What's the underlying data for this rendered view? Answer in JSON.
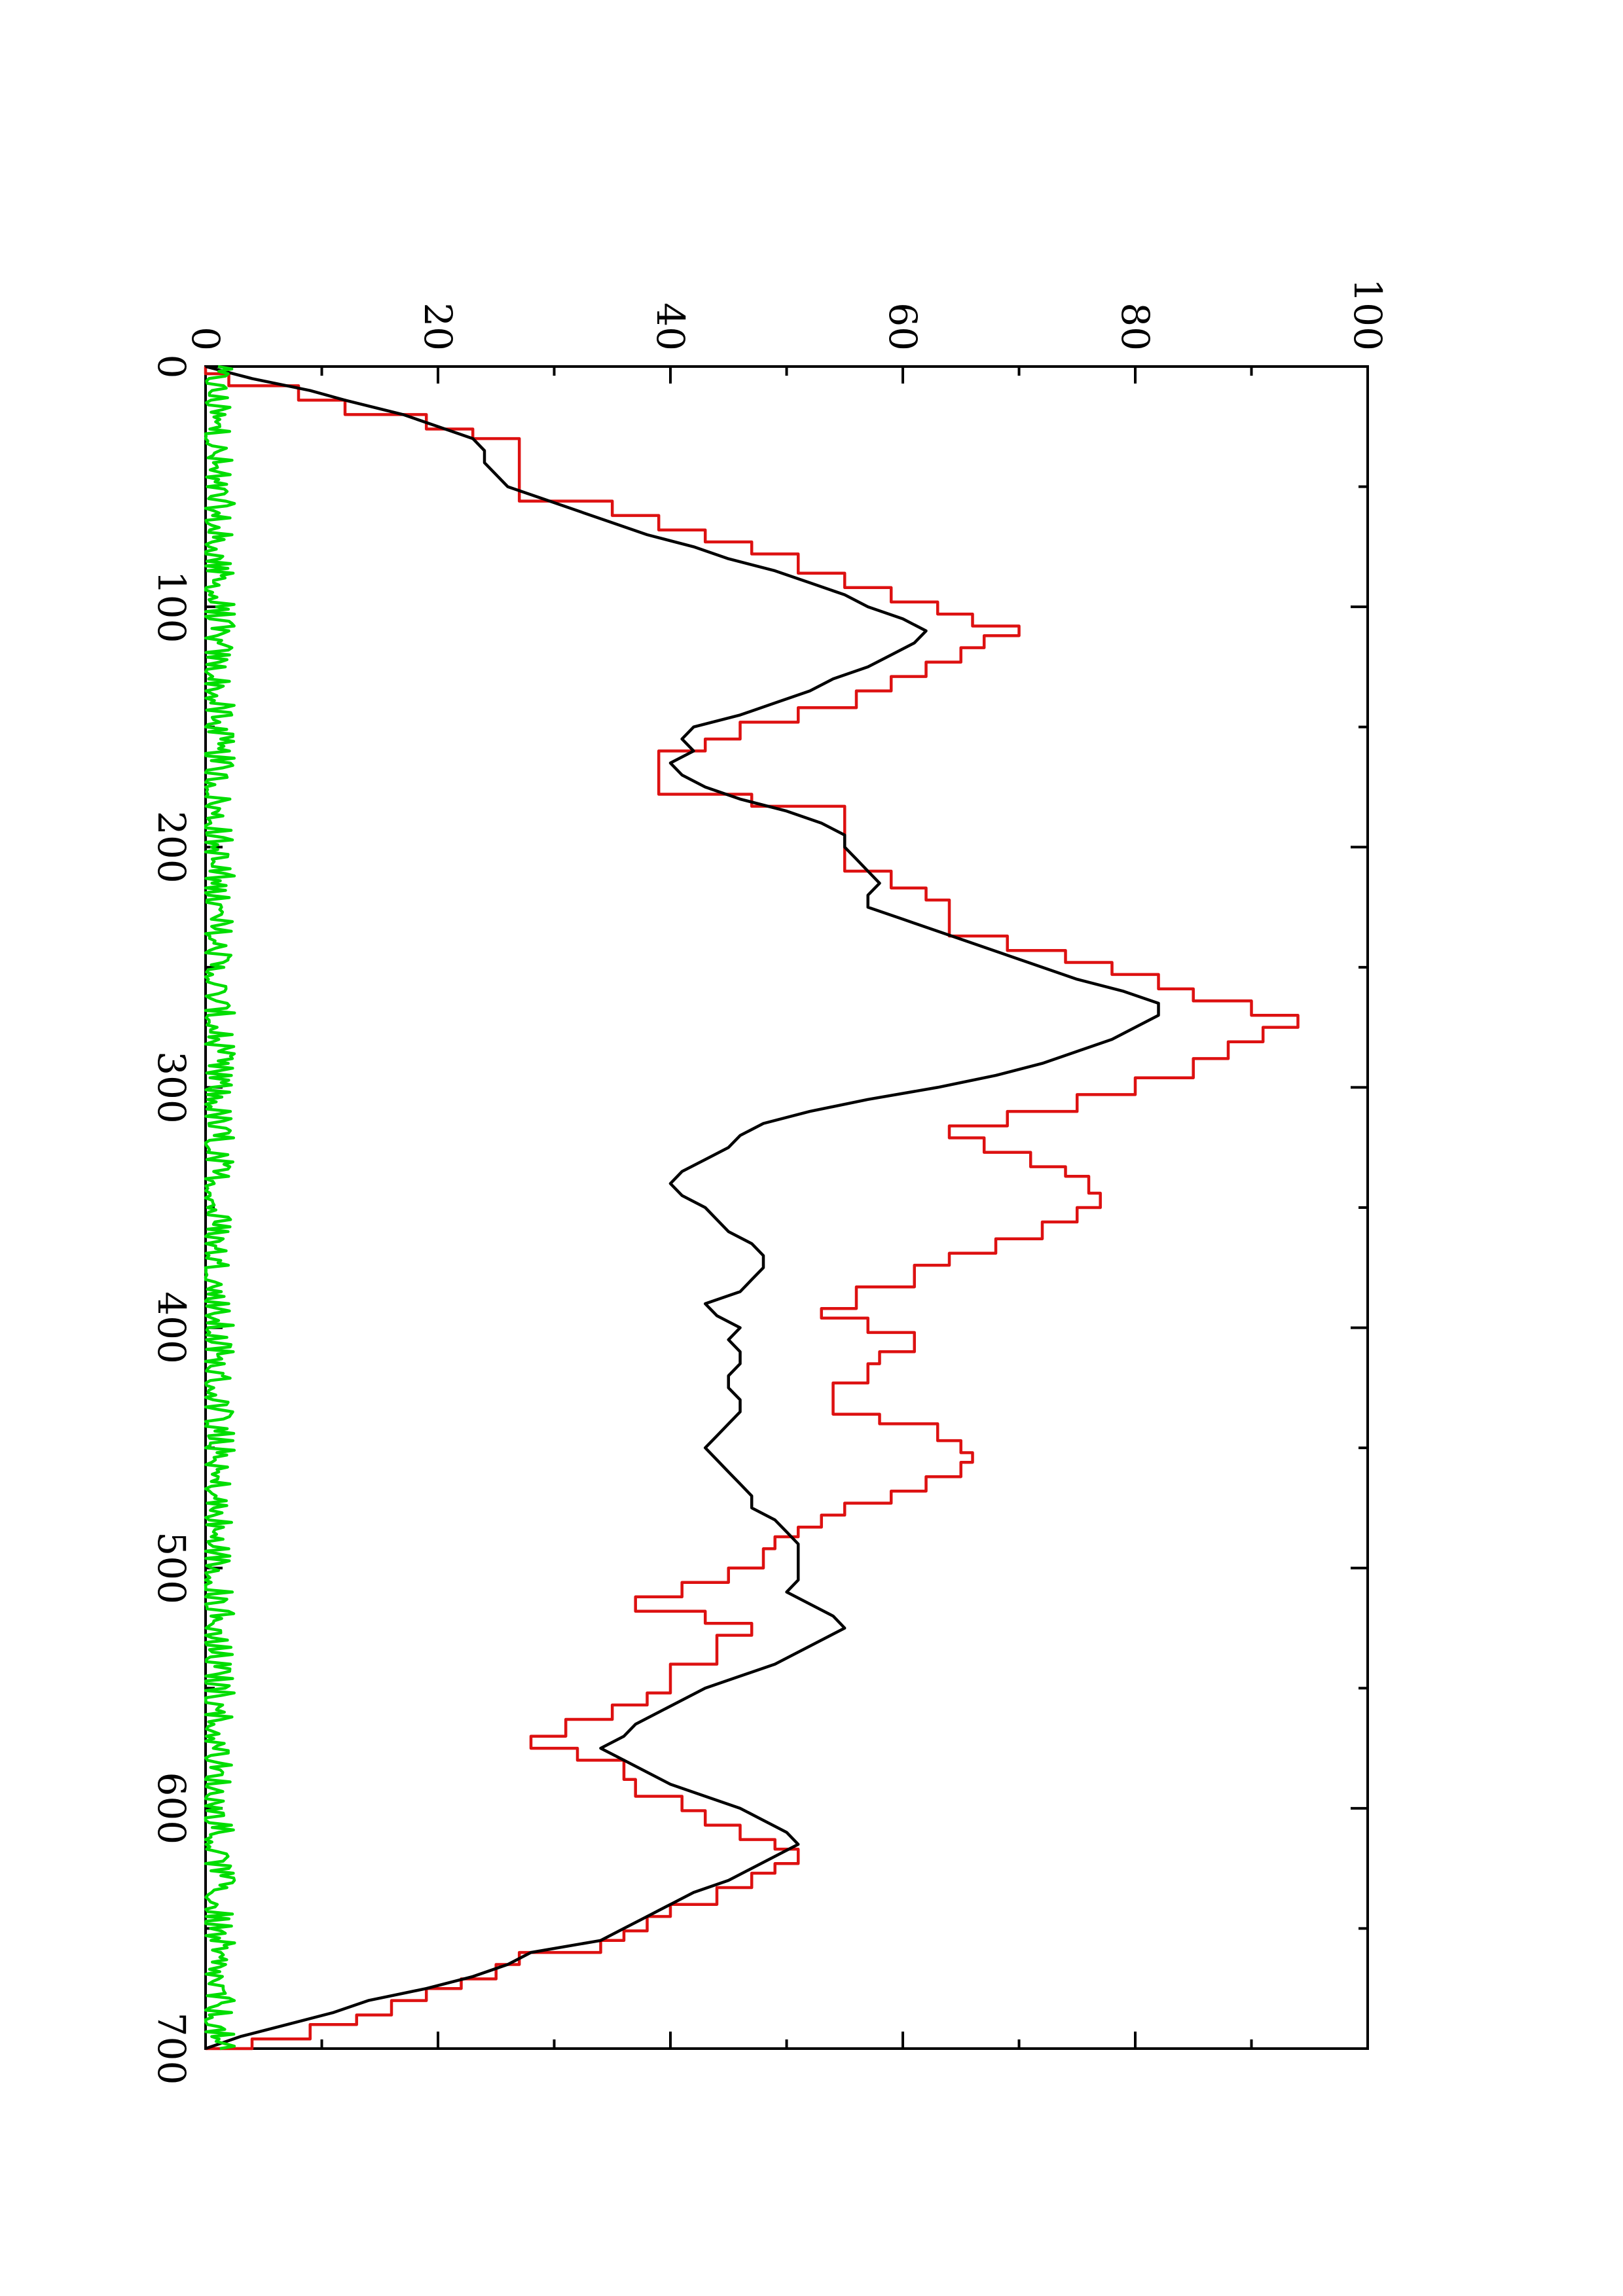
{
  "chart_data": {
    "type": "line",
    "title": "",
    "xlabel": "",
    "ylabel": "",
    "xlim": [
      0,
      700
    ],
    "ylim": [
      0,
      100
    ],
    "x_major_ticks": [
      0,
      100,
      200,
      300,
      400,
      500,
      600,
      700
    ],
    "x_minor_ticks": [
      50,
      150,
      250,
      350,
      450,
      550,
      650
    ],
    "y_major_ticks": [
      0,
      20,
      40,
      60,
      80,
      100
    ],
    "y_minor_ticks": [
      10,
      30,
      50,
      70,
      90
    ],
    "x_tick_labels": [
      "0",
      "100",
      "200",
      "300",
      "400",
      "500",
      "600",
      "700"
    ],
    "y_tick_labels": [
      "0",
      "20",
      "40",
      "60",
      "80",
      "100"
    ],
    "orientation": "rotated-90-ccw",
    "grid": false,
    "legend": "none",
    "series": [
      {
        "color": "#dd1111",
        "step": true,
        "points": [
          [
            0,
            0
          ],
          [
            3,
            2
          ],
          [
            8,
            8
          ],
          [
            14,
            12
          ],
          [
            20,
            19
          ],
          [
            26,
            23
          ],
          [
            30,
            27
          ],
          [
            35,
            27
          ],
          [
            40,
            27
          ],
          [
            52,
            27
          ],
          [
            56,
            35
          ],
          [
            62,
            39
          ],
          [
            68,
            43
          ],
          [
            73,
            47
          ],
          [
            78,
            51
          ],
          [
            86,
            55
          ],
          [
            92,
            59
          ],
          [
            98,
            63
          ],
          [
            103,
            66
          ],
          [
            108,
            70
          ],
          [
            112,
            67
          ],
          [
            117,
            65
          ],
          [
            123,
            62
          ],
          [
            129,
            59
          ],
          [
            135,
            56
          ],
          [
            142,
            51
          ],
          [
            148,
            46
          ],
          [
            155,
            43
          ],
          [
            160,
            39
          ],
          [
            165,
            39
          ],
          [
            172,
            39
          ],
          [
            178,
            47
          ],
          [
            183,
            55
          ],
          [
            190,
            55
          ],
          [
            200,
            55
          ],
          [
            205,
            55
          ],
          [
            210,
            59
          ],
          [
            217,
            62
          ],
          [
            222,
            64
          ],
          [
            230,
            64
          ],
          [
            237,
            69
          ],
          [
            243,
            74
          ],
          [
            248,
            78
          ],
          [
            253,
            82
          ],
          [
            259,
            85
          ],
          [
            264,
            90
          ],
          [
            270,
            94
          ],
          [
            275,
            91
          ],
          [
            281,
            88
          ],
          [
            288,
            85
          ],
          [
            296,
            80
          ],
          [
            303,
            75
          ],
          [
            310,
            69
          ],
          [
            316,
            64
          ],
          [
            321,
            67
          ],
          [
            327,
            71
          ],
          [
            333,
            74
          ],
          [
            337,
            76
          ],
          [
            344,
            77
          ],
          [
            350,
            75
          ],
          [
            356,
            72
          ],
          [
            363,
            68
          ],
          [
            369,
            64
          ],
          [
            374,
            61
          ],
          [
            383,
            56
          ],
          [
            392,
            53
          ],
          [
            396,
            57
          ],
          [
            402,
            61
          ],
          [
            410,
            58
          ],
          [
            415,
            57
          ],
          [
            423,
            54
          ],
          [
            430,
            54
          ],
          [
            436,
            58
          ],
          [
            440,
            63
          ],
          [
            447,
            65
          ],
          [
            452,
            66
          ],
          [
            456,
            65
          ],
          [
            462,
            62
          ],
          [
            468,
            59
          ],
          [
            473,
            55
          ],
          [
            478,
            53
          ],
          [
            483,
            51
          ],
          [
            487,
            49
          ],
          [
            492,
            48
          ],
          [
            500,
            45
          ],
          [
            506,
            41
          ],
          [
            512,
            37
          ],
          [
            518,
            43
          ],
          [
            523,
            47
          ],
          [
            528,
            44
          ],
          [
            536,
            44
          ],
          [
            540,
            40
          ],
          [
            547,
            40
          ],
          [
            552,
            38
          ],
          [
            557,
            35
          ],
          [
            563,
            31
          ],
          [
            570,
            28
          ],
          [
            575,
            32
          ],
          [
            580,
            36
          ],
          [
            588,
            37
          ],
          [
            595,
            41
          ],
          [
            601,
            43
          ],
          [
            607,
            46
          ],
          [
            613,
            49
          ],
          [
            617,
            51
          ],
          [
            623,
            49
          ],
          [
            627,
            47
          ],
          [
            633,
            44
          ],
          [
            640,
            40
          ],
          [
            645,
            38
          ],
          [
            651,
            36
          ],
          [
            655,
            34
          ],
          [
            660,
            27
          ],
          [
            665,
            25
          ],
          [
            671,
            22
          ],
          [
            675,
            19
          ],
          [
            680,
            16
          ],
          [
            686,
            13
          ],
          [
            690,
            9
          ],
          [
            696,
            4
          ],
          [
            700,
            0
          ]
        ]
      },
      {
        "color": "#000000",
        "step": false,
        "points": [
          [
            0,
            0
          ],
          [
            5,
            4
          ],
          [
            10,
            9
          ],
          [
            14,
            12
          ],
          [
            20,
            17
          ],
          [
            25,
            20
          ],
          [
            30,
            23
          ],
          [
            35,
            24
          ],
          [
            40,
            24
          ],
          [
            45,
            25
          ],
          [
            50,
            26
          ],
          [
            55,
            29
          ],
          [
            60,
            32
          ],
          [
            65,
            35
          ],
          [
            70,
            38
          ],
          [
            75,
            42
          ],
          [
            80,
            45
          ],
          [
            85,
            49
          ],
          [
            90,
            52
          ],
          [
            95,
            55
          ],
          [
            100,
            57
          ],
          [
            105,
            60
          ],
          [
            110,
            62
          ],
          [
            115,
            61
          ],
          [
            120,
            59
          ],
          [
            125,
            57
          ],
          [
            130,
            54
          ],
          [
            135,
            52
          ],
          [
            140,
            49
          ],
          [
            145,
            46
          ],
          [
            150,
            42
          ],
          [
            155,
            41
          ],
          [
            160,
            42
          ],
          [
            165,
            40
          ],
          [
            170,
            41
          ],
          [
            175,
            43
          ],
          [
            180,
            46
          ],
          [
            185,
            50
          ],
          [
            190,
            53
          ],
          [
            195,
            55
          ],
          [
            200,
            55
          ],
          [
            205,
            56
          ],
          [
            210,
            57
          ],
          [
            215,
            58
          ],
          [
            220,
            57
          ],
          [
            225,
            57
          ],
          [
            230,
            60
          ],
          [
            235,
            63
          ],
          [
            240,
            66
          ],
          [
            245,
            69
          ],
          [
            250,
            72
          ],
          [
            255,
            75
          ],
          [
            260,
            79
          ],
          [
            265,
            82
          ],
          [
            270,
            82
          ],
          [
            275,
            80
          ],
          [
            280,
            78
          ],
          [
            285,
            75
          ],
          [
            290,
            72
          ],
          [
            295,
            68
          ],
          [
            300,
            63
          ],
          [
            305,
            57
          ],
          [
            310,
            52
          ],
          [
            315,
            48
          ],
          [
            320,
            46
          ],
          [
            325,
            45
          ],
          [
            330,
            43
          ],
          [
            335,
            41
          ],
          [
            340,
            40
          ],
          [
            345,
            41
          ],
          [
            350,
            43
          ],
          [
            355,
            44
          ],
          [
            360,
            45
          ],
          [
            365,
            47
          ],
          [
            370,
            48
          ],
          [
            375,
            48
          ],
          [
            380,
            47
          ],
          [
            385,
            46
          ],
          [
            390,
            43
          ],
          [
            395,
            44
          ],
          [
            400,
            46
          ],
          [
            405,
            45
          ],
          [
            410,
            46
          ],
          [
            415,
            46
          ],
          [
            420,
            45
          ],
          [
            425,
            45
          ],
          [
            430,
            46
          ],
          [
            435,
            46
          ],
          [
            440,
            45
          ],
          [
            445,
            44
          ],
          [
            450,
            43
          ],
          [
            455,
            44
          ],
          [
            460,
            45
          ],
          [
            465,
            46
          ],
          [
            470,
            47
          ],
          [
            475,
            47
          ],
          [
            480,
            49
          ],
          [
            485,
            50
          ],
          [
            490,
            51
          ],
          [
            495,
            51
          ],
          [
            500,
            51
          ],
          [
            505,
            51
          ],
          [
            510,
            50
          ],
          [
            515,
            52
          ],
          [
            520,
            54
          ],
          [
            525,
            55
          ],
          [
            530,
            53
          ],
          [
            535,
            51
          ],
          [
            540,
            49
          ],
          [
            545,
            46
          ],
          [
            550,
            43
          ],
          [
            555,
            41
          ],
          [
            560,
            39
          ],
          [
            565,
            37
          ],
          [
            570,
            36
          ],
          [
            575,
            34
          ],
          [
            580,
            36
          ],
          [
            585,
            38
          ],
          [
            590,
            40
          ],
          [
            595,
            43
          ],
          [
            600,
            46
          ],
          [
            605,
            48
          ],
          [
            610,
            50
          ],
          [
            615,
            51
          ],
          [
            620,
            49
          ],
          [
            625,
            47
          ],
          [
            630,
            45
          ],
          [
            635,
            42
          ],
          [
            640,
            40
          ],
          [
            645,
            38
          ],
          [
            650,
            36
          ],
          [
            655,
            34
          ],
          [
            660,
            28
          ],
          [
            665,
            26
          ],
          [
            670,
            23
          ],
          [
            675,
            19
          ],
          [
            680,
            14
          ],
          [
            685,
            11
          ],
          [
            690,
            7
          ],
          [
            695,
            3
          ],
          [
            700,
            0
          ]
        ]
      },
      {
        "color": "#00dd00",
        "step": false,
        "noise": true,
        "x_range": [
          0,
          700
        ],
        "y_range": [
          0,
          2.5
        ],
        "sample_step": 1
      }
    ]
  }
}
